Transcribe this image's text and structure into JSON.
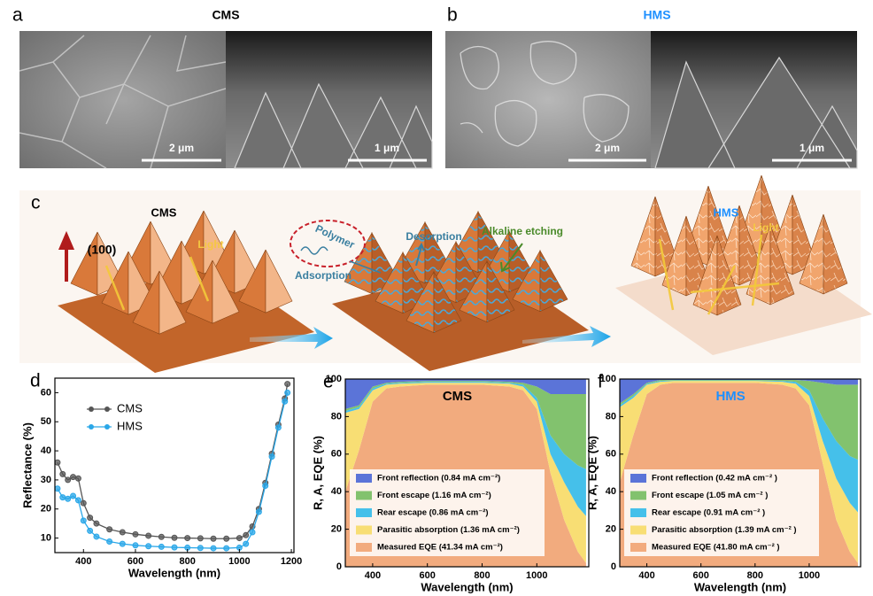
{
  "panels": {
    "a": {
      "label": "a",
      "title": "CMS",
      "scale_bars": [
        "2 μm",
        "1 μm"
      ]
    },
    "b": {
      "label": "b",
      "title": "HMS",
      "scale_bars": [
        "2 μm",
        "1 μm"
      ]
    },
    "c": {
      "label": "c",
      "left_title": "CMS",
      "facet": "(100)",
      "light_left": "Light",
      "polymer": "Polymer",
      "adsorption": "Adsorption",
      "desorption": "Desorption",
      "etching": "Alkaline etching",
      "right_title": "HMS",
      "light_right": "Light"
    }
  },
  "chart_data": [
    {
      "type": "line",
      "label": "d",
      "x_label": "Wavelength (nm)",
      "y_label": "Reflectance (%)",
      "x": [
        300,
        320,
        340,
        360,
        380,
        400,
        425,
        450,
        500,
        550,
        600,
        650,
        700,
        750,
        800,
        850,
        900,
        950,
        1000,
        1025,
        1050,
        1075,
        1100,
        1125,
        1150,
        1175,
        1185
      ],
      "series": [
        {
          "name": "CMS",
          "color": "#555555",
          "values": [
            36,
            32,
            30,
            31,
            30.5,
            22,
            17,
            15,
            13,
            12,
            11.3,
            10.8,
            10.4,
            10.1,
            10,
            9.9,
            9.8,
            9.8,
            10,
            11,
            14,
            20,
            29,
            39,
            49,
            58,
            63
          ]
        },
        {
          "name": "HMS",
          "color": "#2aa7e8",
          "values": [
            27,
            24,
            23.5,
            24.5,
            23,
            16,
            12.5,
            10.5,
            8.8,
            8,
            7.5,
            7.2,
            7,
            6.8,
            6.7,
            6.6,
            6.5,
            6.5,
            6.7,
            8,
            12,
            19,
            28,
            38,
            48,
            57,
            60
          ]
        }
      ],
      "xlim": [
        290,
        1210
      ],
      "ylim": [
        5,
        65
      ],
      "xticks": [
        400,
        600,
        800,
        1000,
        1200
      ],
      "yticks": [
        10,
        20,
        30,
        40,
        50,
        60
      ]
    },
    {
      "type": "area",
      "stacked": true,
      "label": "e",
      "title": "CMS",
      "title_color": "#000000",
      "x_label": "Wavelength (nm)",
      "y_label": "R, A, EQE (%)",
      "x": [
        300,
        350,
        400,
        450,
        500,
        600,
        700,
        800,
        900,
        950,
        1000,
        1050,
        1100,
        1150,
        1180
      ],
      "series": [
        {
          "name": "Front reflection (0.84 mA cm⁻²)",
          "color": "#5b74d8",
          "values": [
            16,
            14,
            4,
            2,
            1.5,
            1,
            1,
            1,
            1.5,
            2,
            4,
            8,
            8,
            8,
            8
          ]
        },
        {
          "name": "Front escape (1.16 mA cm⁻²)",
          "color": "#82c26e",
          "values": [
            1,
            1,
            1,
            0.5,
            0.5,
            0.5,
            0.5,
            0.5,
            0.5,
            1,
            6,
            22,
            32,
            38,
            40
          ]
        },
        {
          "name": "Rear escape (0.86 mA cm⁻²)",
          "color": "#45c0ea",
          "values": [
            1,
            1,
            1,
            0.5,
            0.5,
            0.5,
            0.5,
            0.5,
            0.5,
            1,
            2,
            10,
            15,
            22,
            25
          ]
        },
        {
          "name": "Parasitic absorption (1.36 mA cm⁻²)",
          "color": "#f8de74",
          "values": [
            42,
            22,
            6,
            2,
            1.5,
            1,
            1,
            1,
            1.5,
            2,
            4,
            10,
            20,
            24,
            25
          ]
        },
        {
          "name": "Measured EQE (41.34 mA cm⁻²)",
          "color": "#f2ab7e",
          "values": [
            40,
            62,
            88,
            95,
            96,
            97,
            97,
            97,
            96,
            94,
            84,
            50,
            25,
            8,
            2
          ]
        }
      ],
      "xlim": [
        300,
        1190
      ],
      "ylim": [
        0,
        100
      ],
      "xticks": [
        400,
        600,
        800,
        1000
      ],
      "yticks": [
        0,
        20,
        40,
        60,
        80,
        100
      ]
    },
    {
      "type": "area",
      "stacked": true,
      "label": "f",
      "title": "HMS",
      "title_color": "#1e90ff",
      "x_label": "Wavelength (nm)",
      "y_label": "R, A, EQE (%)",
      "x": [
        300,
        350,
        400,
        450,
        500,
        600,
        700,
        800,
        900,
        950,
        1000,
        1050,
        1100,
        1150,
        1180
      ],
      "series": [
        {
          "name": "Front reflection (0.42 mA cm⁻² )",
          "color": "#5b74d8",
          "values": [
            13,
            8,
            2,
            0.5,
            0.5,
            0.5,
            0.5,
            0.5,
            0.5,
            0.5,
            1,
            2,
            3,
            3,
            3
          ]
        },
        {
          "name": "Front escape (1.05 mA cm⁻² )",
          "color": "#82c26e",
          "values": [
            1,
            1,
            0.5,
            0.5,
            0.25,
            0.25,
            0.25,
            0.25,
            0.5,
            1,
            5,
            19,
            30,
            38,
            40
          ]
        },
        {
          "name": "Rear escape (0.91 mA cm⁻² )",
          "color": "#45c0ea",
          "values": [
            1,
            1,
            0.5,
            0.5,
            0.25,
            0.25,
            0.25,
            0.25,
            0.5,
            1,
            3,
            12,
            20,
            25,
            28
          ]
        },
        {
          "name": "Parasitic absorption (1.39 mA cm⁻² )",
          "color": "#f8de74",
          "values": [
            40,
            20,
            5,
            1.5,
            1,
            1,
            1,
            1,
            1.5,
            2.5,
            5,
            12,
            22,
            26,
            27
          ]
        },
        {
          "name": "Measured EQE (41.80 mA cm⁻² )",
          "color": "#f2ab7e",
          "values": [
            45,
            70,
            92,
            97,
            98,
            98,
            98,
            98,
            97,
            95,
            86,
            55,
            25,
            8,
            2
          ]
        }
      ],
      "xlim": [
        300,
        1190
      ],
      "ylim": [
        0,
        100
      ],
      "xticks": [
        400,
        600,
        800,
        1000
      ],
      "yticks": [
        0,
        20,
        40,
        60,
        80,
        100
      ]
    }
  ]
}
